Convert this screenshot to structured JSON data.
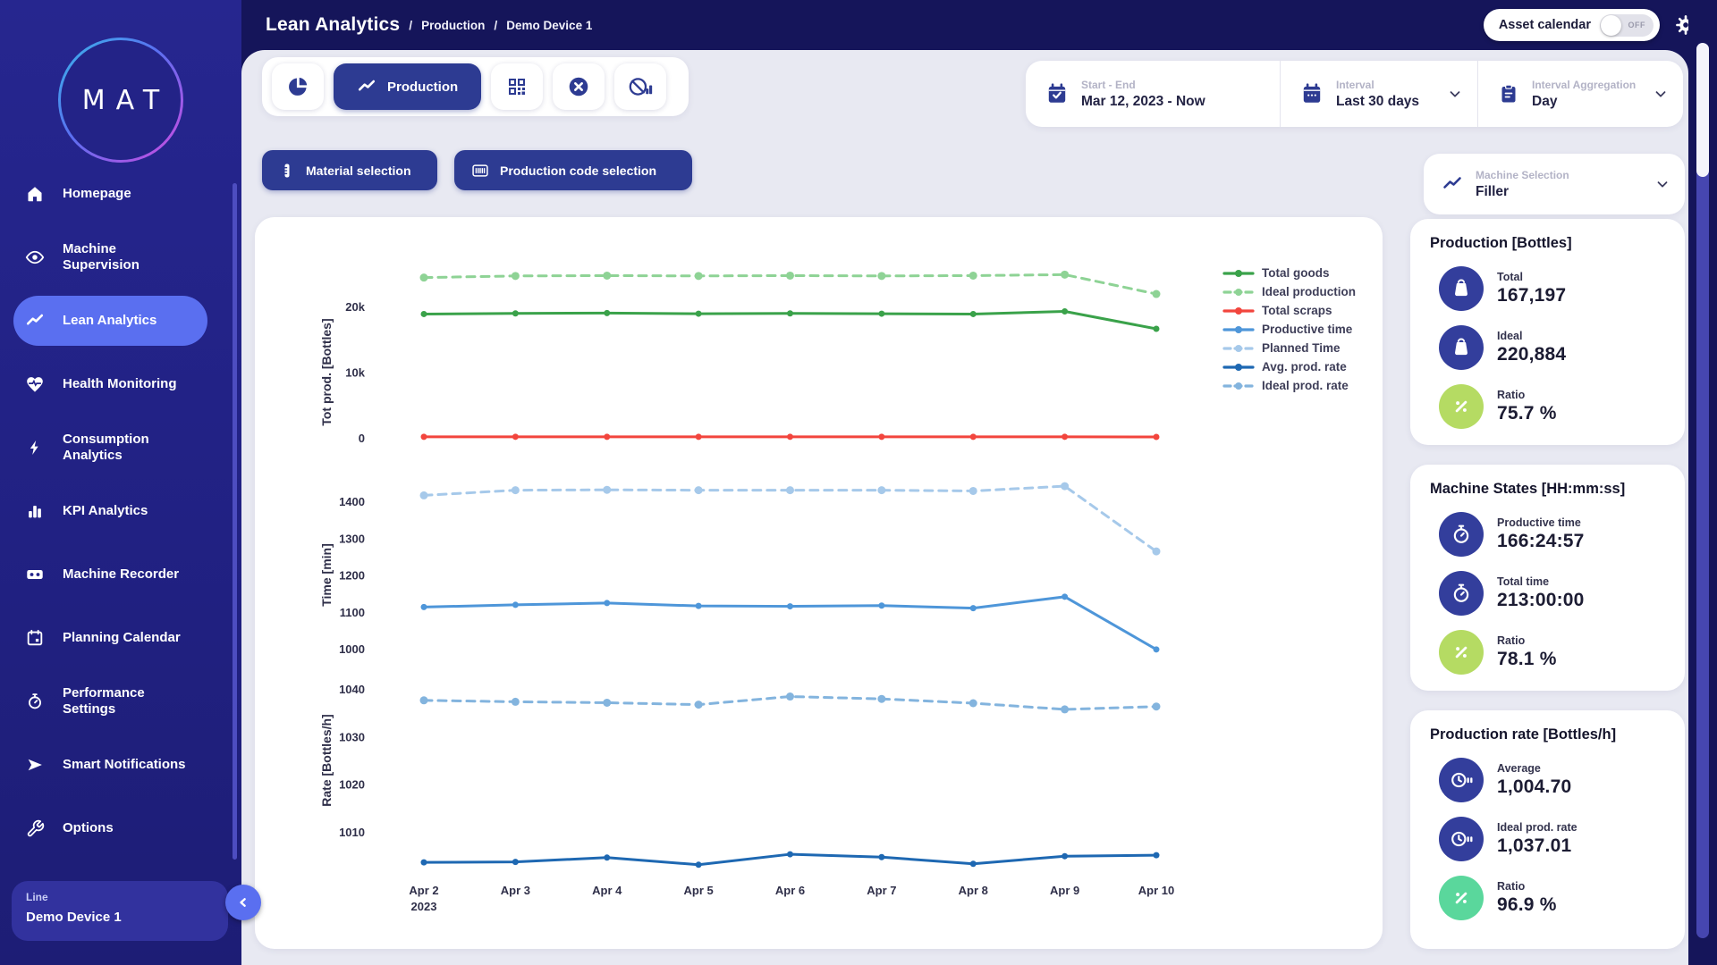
{
  "topbar": {
    "title": "Lean Analytics",
    "separator": "/",
    "breadcrumbs": [
      "Production",
      "Demo Device 1"
    ],
    "asset_calendar": {
      "label": "Asset calendar",
      "state": "OFF"
    }
  },
  "logo": {
    "text": "MAT"
  },
  "sidebar": {
    "items": [
      {
        "label": "Homepage",
        "icon": "home-icon",
        "active": false
      },
      {
        "label": "Machine Supervision",
        "icon": "eye-icon",
        "active": false
      },
      {
        "label": "Lean Analytics",
        "icon": "trend-icon",
        "active": true
      },
      {
        "label": "Health Monitoring",
        "icon": "heart-pulse-icon",
        "active": false
      },
      {
        "label": "Consumption Analytics",
        "icon": "bolt-icon",
        "active": false
      },
      {
        "label": "KPI Analytics",
        "icon": "bar-chart-icon",
        "active": false
      },
      {
        "label": "Machine Recorder",
        "icon": "cassette-icon",
        "active": false
      },
      {
        "label": "Planning Calendar",
        "icon": "calendar-icon",
        "active": false
      },
      {
        "label": "Performance Settings",
        "icon": "stopwatch-icon",
        "active": false
      },
      {
        "label": "Smart Notifications",
        "icon": "send-icon",
        "active": false
      },
      {
        "label": "Options",
        "icon": "wrench-icon",
        "active": false
      }
    ],
    "device": {
      "label": "Line",
      "value": "Demo Device 1"
    }
  },
  "toolbar": {
    "production_label": "Production",
    "material_selection_label": "Material selection",
    "production_code_label": "Production code selection"
  },
  "filters": {
    "start_end": {
      "label": "Start - End",
      "value": "Mar 12, 2023 - Now"
    },
    "interval": {
      "label": "Interval",
      "value": "Last 30 days"
    },
    "aggregation": {
      "label": "Interval Aggregation",
      "value": "Day"
    },
    "machine": {
      "label": "Machine Selection",
      "value": "Filler"
    }
  },
  "legend": [
    {
      "label": "Total goods",
      "color": "#3aa24a",
      "dashed": false
    },
    {
      "label": "Ideal production",
      "color": "#8ed395",
      "dashed": true
    },
    {
      "label": "Total scraps",
      "color": "#f2453d",
      "dashed": false
    },
    {
      "label": "Productive time",
      "color": "#4e96d9",
      "dashed": false
    },
    {
      "label": "Planned Time",
      "color": "#a6c9ea",
      "dashed": true
    },
    {
      "label": "Avg. prod. rate",
      "color": "#1e68b2",
      "dashed": false
    },
    {
      "label": "Ideal prod. rate",
      "color": "#83b4de",
      "dashed": true
    }
  ],
  "chart_data": [
    {
      "type": "line",
      "ylabel": "Tot prod. [Bottles]",
      "ylim": [
        0,
        26500
      ],
      "yticks": [
        {
          "v": 20000,
          "label": "20k"
        },
        {
          "v": 10000,
          "label": "10k"
        },
        {
          "v": 0,
          "label": "0"
        }
      ],
      "x": [
        [
          "Apr 2",
          "2023"
        ],
        [
          "Apr 3"
        ],
        [
          "Apr 4"
        ],
        [
          "Apr 5"
        ],
        [
          "Apr 6"
        ],
        [
          "Apr 7"
        ],
        [
          "Apr 8"
        ],
        [
          "Apr 9"
        ],
        [
          "Apr 10"
        ]
      ],
      "series": [
        {
          "name": "Ideal production",
          "color": "#8ed395",
          "dashed": true,
          "values": [
            24400,
            24650,
            24700,
            24650,
            24700,
            24650,
            24700,
            24850,
            21900
          ]
        },
        {
          "name": "Total goods",
          "color": "#3aa24a",
          "dashed": false,
          "values": [
            18850,
            18950,
            19000,
            18900,
            18950,
            18900,
            18850,
            19250,
            16600
          ]
        },
        {
          "name": "Total scraps",
          "color": "#f2453d",
          "dashed": false,
          "values": [
            150,
            160,
            150,
            150,
            160,
            150,
            150,
            160,
            140
          ]
        }
      ]
    },
    {
      "type": "line",
      "ylabel": "Time [min]",
      "ylim": [
        950,
        1475
      ],
      "yticks": [
        {
          "v": 1400,
          "label": "1400"
        },
        {
          "v": 1300,
          "label": "1300"
        },
        {
          "v": 1200,
          "label": "1200"
        },
        {
          "v": 1100,
          "label": "1100"
        },
        {
          "v": 1000,
          "label": "1000"
        }
      ],
      "x": [
        [
          "Apr 2",
          "2023"
        ],
        [
          "Apr 3"
        ],
        [
          "Apr 4"
        ],
        [
          "Apr 5"
        ],
        [
          "Apr 6"
        ],
        [
          "Apr 7"
        ],
        [
          "Apr 8"
        ],
        [
          "Apr 9"
        ],
        [
          "Apr 10"
        ]
      ],
      "series": [
        {
          "name": "Planned Time",
          "color": "#a6c9ea",
          "dashed": true,
          "values": [
            1416,
            1430,
            1431,
            1430,
            1430,
            1430,
            1428,
            1441,
            1264
          ]
        },
        {
          "name": "Productive time",
          "color": "#4e96d9",
          "dashed": false,
          "values": [
            1113,
            1119,
            1124,
            1116,
            1115,
            1117,
            1110,
            1141,
            998
          ]
        }
      ]
    },
    {
      "type": "line",
      "ylabel": "Rate [Bottles/h]",
      "ylim": [
        1000,
        1045
      ],
      "yticks": [
        {
          "v": 1040,
          "label": "1040"
        },
        {
          "v": 1030,
          "label": "1030"
        },
        {
          "v": 1020,
          "label": "1020"
        },
        {
          "v": 1010,
          "label": "1010"
        }
      ],
      "x": [
        [
          "Apr 2",
          "2023"
        ],
        [
          "Apr 3"
        ],
        [
          "Apr 4"
        ],
        [
          "Apr 5"
        ],
        [
          "Apr 6"
        ],
        [
          "Apr 7"
        ],
        [
          "Apr 8"
        ],
        [
          "Apr 9"
        ],
        [
          "Apr 10"
        ]
      ],
      "series": [
        {
          "name": "Ideal prod. rate",
          "color": "#83b4de",
          "dashed": true,
          "values": [
            1037.6,
            1037.3,
            1037.1,
            1036.7,
            1038.4,
            1037.9,
            1037.0,
            1035.7,
            1036.3
          ]
        },
        {
          "name": "Avg. prod. rate",
          "color": "#1e68b2",
          "dashed": false,
          "values": [
            1003.6,
            1003.7,
            1004.6,
            1003.1,
            1005.3,
            1004.7,
            1003.3,
            1004.9,
            1005.1
          ]
        }
      ]
    }
  ],
  "cards": [
    {
      "title": "Production [Bottles]",
      "rows": [
        {
          "label": "Total",
          "value": "167,197",
          "icon": "bag-icon",
          "tone": "navy"
        },
        {
          "label": "Ideal",
          "value": "220,884",
          "icon": "bag-icon",
          "tone": "navy"
        },
        {
          "label": "Ratio",
          "value": "75.7 %",
          "icon": "percent-icon",
          "tone": "lime"
        }
      ]
    },
    {
      "title": "Machine States [HH:mm:ss]",
      "rows": [
        {
          "label": "Productive time",
          "value": "166:24:57",
          "icon": "stopwatch-icon",
          "tone": "navy"
        },
        {
          "label": "Total time",
          "value": "213:00:00",
          "icon": "stopwatch-icon",
          "tone": "navy"
        },
        {
          "label": "Ratio",
          "value": "78.1 %",
          "icon": "percent-icon",
          "tone": "lime"
        }
      ]
    },
    {
      "title": "Production rate [Bottles/h]",
      "rows": [
        {
          "label": "Average",
          "value": "1,004.70",
          "icon": "rate-icon",
          "tone": "navy"
        },
        {
          "label": "Ideal prod. rate",
          "value": "1,037.01",
          "icon": "rate-icon",
          "tone": "navy"
        },
        {
          "label": "Ratio",
          "value": "96.9 %",
          "icon": "percent-icon",
          "tone": "mint"
        }
      ]
    }
  ],
  "colors": {
    "sidebar_bg": "#232387",
    "topbar_bg": "#15155a",
    "content_bg": "#e8e9f2",
    "active_item": "#5a6ff0",
    "primary_navy": "#2d3b92",
    "icon_circle_navy": "#333e9c",
    "lime": "#b5db63",
    "mint": "#5ad79c",
    "green": "#3aa24a",
    "light_green": "#8ed395",
    "red": "#f2453d",
    "blue": "#4e96d9",
    "light_blue": "#a6c9ea",
    "dark_blue": "#1e68b2",
    "steel_blue": "#83b4de"
  }
}
